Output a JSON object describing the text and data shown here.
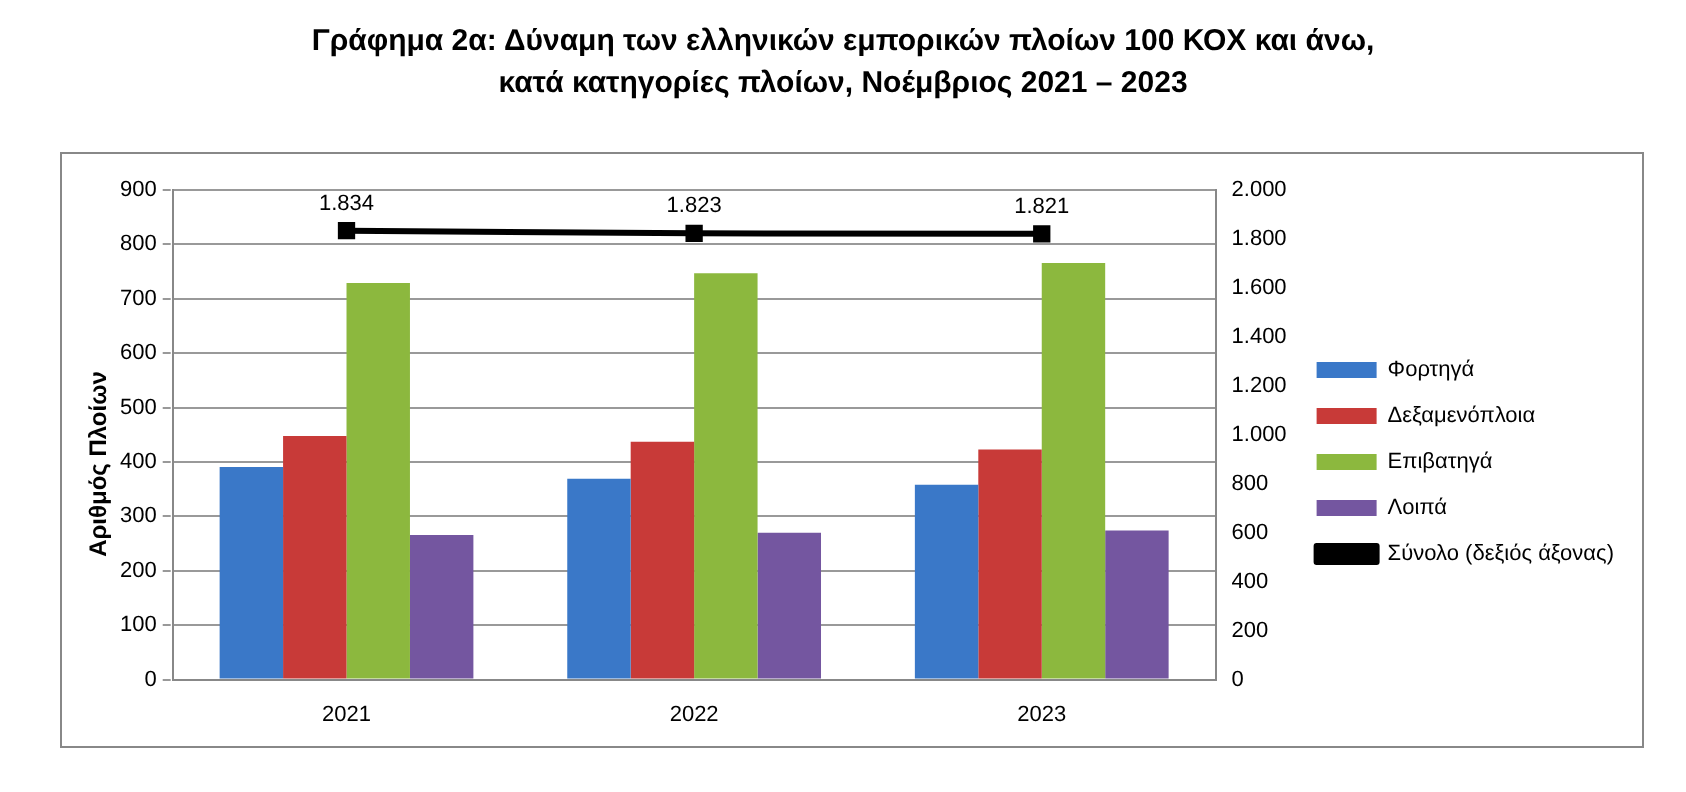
{
  "chart_data": {
    "type": "bar",
    "title": "Γράφημα 2α: Δύναμη των ελληνικών εμπορικών πλοίων 100 ΚΟΧ και άνω, κατά κατηγορίες πλοίων, Νοέμβριος 2021 – 2023",
    "ylabel": "Αριθμός Πλοίων",
    "categories": [
      "2021",
      "2022",
      "2023"
    ],
    "series": [
      {
        "name": "Φορτηγά",
        "color": "#3a78c8",
        "values": [
          391,
          369,
          358
        ]
      },
      {
        "name": "Δεξαμενόπλοια",
        "color": "#c83a38",
        "values": [
          448,
          437,
          423
        ]
      },
      {
        "name": "Επιβατηγά",
        "color": "#8cb83e",
        "values": [
          729,
          747,
          766
        ]
      },
      {
        "name": "Λοιπά",
        "color": "#7456a0",
        "values": [
          266,
          270,
          274
        ]
      },
      {
        "name": "Σύνολο (δεξιός άξονας)",
        "type": "line",
        "axis": "y2",
        "color": "#000000",
        "values": [
          1834,
          1823,
          1821
        ],
        "value_labels": [
          "1.834",
          "1.823",
          "1.821"
        ],
        "marker": "square"
      }
    ],
    "ylim": [
      0,
      900
    ],
    "yticks": [
      0,
      100,
      200,
      300,
      400,
      500,
      600,
      700,
      800,
      900
    ],
    "y2lim": [
      0,
      2000
    ],
    "y2ticks": [
      0,
      200,
      400,
      600,
      800,
      {
        "value": 1000,
        "label": "1.000"
      },
      {
        "value": 1200,
        "label": "1.200"
      },
      {
        "value": 1400,
        "label": "1.400"
      },
      {
        "value": 1600,
        "label": "1.600"
      },
      {
        "value": 1800,
        "label": "1.800"
      },
      {
        "value": 2000,
        "label": "2.000"
      }
    ],
    "grid": "y",
    "legend": "right"
  }
}
